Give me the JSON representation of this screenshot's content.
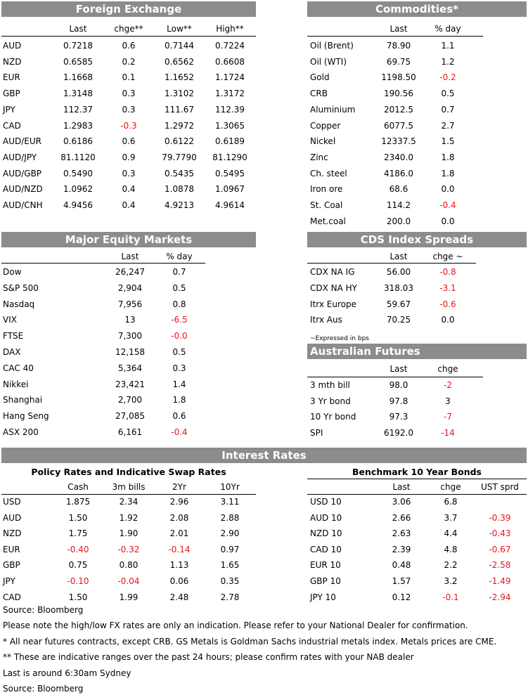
{
  "colors": {
    "header_bg": "#8c8c8c",
    "negative": "#e8141b"
  },
  "fx": {
    "title": "Foreign Exchange",
    "cols": [
      "Last",
      "chge**",
      "Low**",
      "High**"
    ],
    "rows": [
      [
        "AUD",
        "0.7218",
        "0.6",
        "0.7144",
        "0.7224"
      ],
      [
        "NZD",
        "0.6585",
        "0.2",
        "0.6562",
        "0.6608"
      ],
      [
        "EUR",
        "1.1668",
        "0.1",
        "1.1652",
        "1.1724"
      ],
      [
        "GBP",
        "1.3148",
        "0.3",
        "1.3102",
        "1.3172"
      ],
      [
        "JPY",
        "112.37",
        "0.3",
        "111.67",
        "112.39"
      ],
      [
        "CAD",
        "1.2983",
        "-0.3",
        "1.2972",
        "1.3065"
      ],
      [
        "AUD/EUR",
        "0.6186",
        "0.6",
        "0.6122",
        "0.6189"
      ],
      [
        "AUD/JPY",
        "81.1120",
        "0.9",
        "79.7790",
        "81.1290"
      ],
      [
        "AUD/GBP",
        "0.5490",
        "0.3",
        "0.5435",
        "0.5495"
      ],
      [
        "AUD/NZD",
        "1.0962",
        "0.4",
        "1.0878",
        "1.0967"
      ],
      [
        "AUD/CNH",
        "4.9456",
        "0.4",
        "4.9213",
        "4.9614"
      ]
    ]
  },
  "comm": {
    "title": "Commodities*",
    "cols": [
      "Last",
      "% day"
    ],
    "rows": [
      [
        "Oil (Brent)",
        "78.90",
        "1.1"
      ],
      [
        "Oil (WTI)",
        "69.75",
        "1.2"
      ],
      [
        "Gold",
        "1198.50",
        "-0.2"
      ],
      [
        "CRB",
        "190.56",
        "0.5"
      ],
      [
        "Aluminium",
        "2012.5",
        "0.7"
      ],
      [
        "Copper",
        "6077.5",
        "2.7"
      ],
      [
        "Nickel",
        "12337.5",
        "1.5"
      ],
      [
        "Zinc",
        "2340.0",
        "1.8"
      ],
      [
        "Ch. steel",
        "4186.0",
        "1.8"
      ],
      [
        "Iron ore",
        "68.6",
        "0.0"
      ],
      [
        "St. Coal",
        "114.2",
        "-0.4"
      ],
      [
        "Met.coal",
        "200.0",
        "0.0"
      ]
    ]
  },
  "eq": {
    "title": "Major Equity Markets",
    "cols": [
      "Last",
      "% day"
    ],
    "rows": [
      [
        "Dow",
        "26,247",
        "0.7"
      ],
      [
        "S&P 500",
        "2,904",
        "0.5"
      ],
      [
        "Nasdaq",
        "7,956",
        "0.8"
      ],
      [
        "VIX",
        "13",
        "-6.5"
      ],
      [
        "FTSE",
        "7,300",
        "-0.0"
      ],
      [
        "DAX",
        "12,158",
        "0.5"
      ],
      [
        "CAC 40",
        "5,364",
        "0.3"
      ],
      [
        "Nikkei",
        "23,421",
        "1.4"
      ],
      [
        "Shanghai",
        "2,700",
        "1.8"
      ],
      [
        "Hang Seng",
        "27,085",
        "0.6"
      ],
      [
        "ASX 200",
        "6,161",
        "-0.4"
      ]
    ]
  },
  "cds": {
    "title": "CDS Index Spreads",
    "cols": [
      "Last",
      "chge ~"
    ],
    "rows": [
      [
        "CDX NA IG",
        "56.00",
        "-0.8"
      ],
      [
        "CDX NA HY",
        "318.03",
        "-3.1"
      ],
      [
        "Itrx Europe",
        "59.67",
        "-0.6"
      ],
      [
        "Itrx Aus",
        "70.25",
        "0.0"
      ]
    ],
    "note": "~Expressed in bps"
  },
  "fut": {
    "title": "Australian Futures",
    "cols": [
      "Last",
      "chge"
    ],
    "rows": [
      [
        "3 mth bill",
        "98.0",
        "-2"
      ],
      [
        "3 Yr bond",
        "97.8",
        "3"
      ],
      [
        "10 Yr bond",
        "97.3",
        "-7"
      ],
      [
        "SPI",
        "6192.0",
        "-14"
      ]
    ]
  },
  "ir": {
    "title": "Interest Rates",
    "policy_title": "Policy Rates and Indicative Swap Rates",
    "policy_cols": [
      "Cash",
      "3m bills",
      "2Yr",
      "10Yr"
    ],
    "policy_rows": [
      [
        "USD",
        "1.875",
        "2.34",
        "2.96",
        "3.11"
      ],
      [
        "AUD",
        "1.50",
        "1.92",
        "2.08",
        "2.88"
      ],
      [
        "NZD",
        "1.75",
        "1.90",
        "2.01",
        "2.90"
      ],
      [
        "EUR",
        "-0.40",
        "-0.32",
        "-0.14",
        "0.97"
      ],
      [
        "GBP",
        "0.75",
        "0.80",
        "1.13",
        "1.65"
      ],
      [
        "JPY",
        "-0.10",
        "-0.04",
        "0.06",
        "0.35"
      ],
      [
        "CAD",
        "1.50",
        "1.99",
        "2.48",
        "2.78"
      ]
    ],
    "bench_title": "Benchmark 10 Year Bonds",
    "bench_cols": [
      "Last",
      "chge",
      "UST sprd"
    ],
    "bench_rows": [
      [
        "USD 10",
        "3.06",
        "6.8",
        ""
      ],
      [
        "AUD 10",
        "2.66",
        "3.7",
        "-0.39"
      ],
      [
        "NZD 10",
        "2.63",
        "4.4",
        "-0.43"
      ],
      [
        "CAD 10",
        "2.39",
        "4.8",
        "-0.67"
      ],
      [
        "EUR 10",
        "0.48",
        "2.2",
        "-2.58"
      ],
      [
        "GBP 10",
        "1.57",
        "3.2",
        "-1.49"
      ],
      [
        "JPY 10",
        "0.12",
        "-0.1",
        "-2.94"
      ]
    ]
  },
  "notes": [
    "Source: Bloomberg",
    "Please note the high/low FX rates are only an indication. Please refer to your National Dealer for confirmation.",
    "* All near futures contracts, except CRB.  GS Metals is Goldman Sachs industrial metals index.  Metals prices are CME.",
    "** These are indicative ranges over the past 24 hours; please confirm rates with your NAB dealer",
    "Last is around 6:30am Sydney",
    "Source: Bloomberg"
  ]
}
